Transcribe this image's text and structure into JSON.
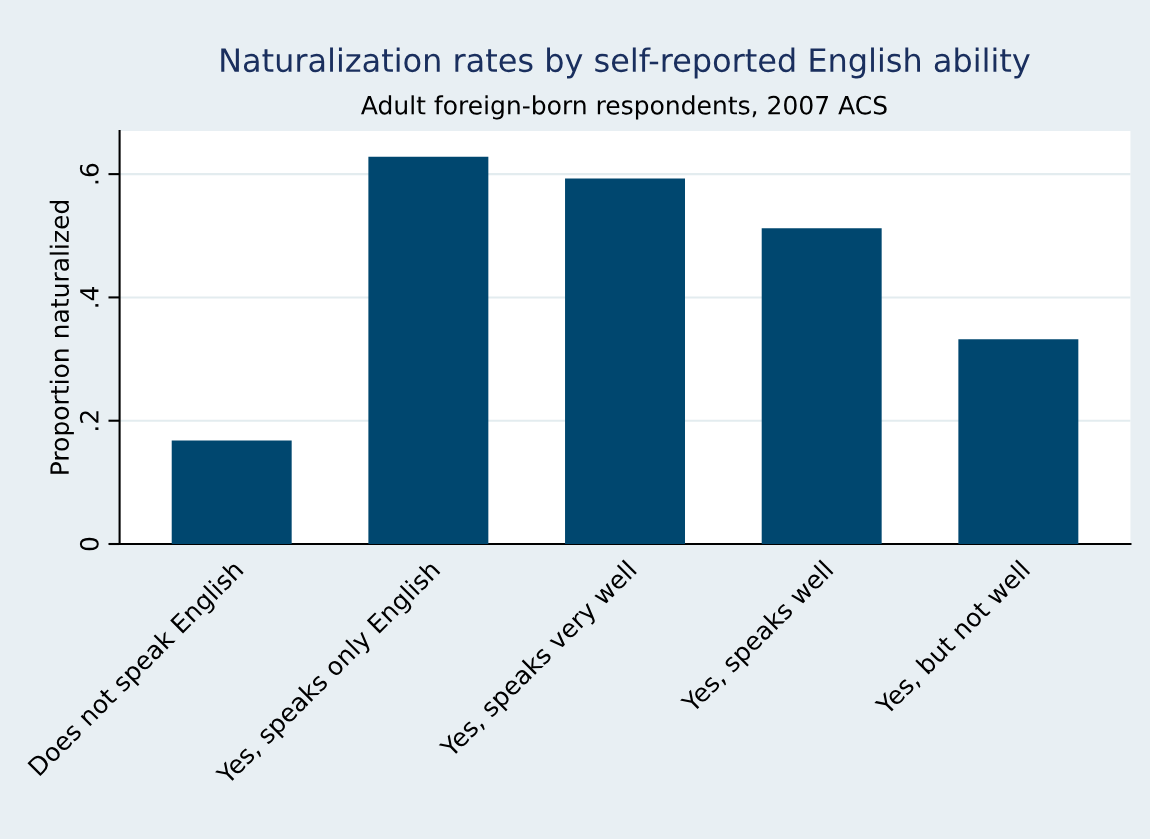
{
  "chart_data": {
    "type": "bar",
    "title": "Naturalization rates by self-reported English ability",
    "subtitle": "Adult foreign-born respondents, 2007 ACS",
    "ylabel": "Proportion naturalized",
    "categories": [
      "Does not speak English",
      "Yes, speaks only English",
      "Yes, speaks very well",
      "Yes, speaks well",
      "Yes, but not well"
    ],
    "values": [
      0.168,
      0.628,
      0.593,
      0.512,
      0.332
    ],
    "color": "#00476f",
    "ylim": [
      0,
      0.67
    ],
    "yticks": [
      0,
      {
        "value": 0.2,
        "label": ".2"
      },
      {
        "value": 0.4,
        "label": ".4"
      },
      {
        "value": 0.6,
        "label": ".6"
      }
    ],
    "grid": "y"
  }
}
